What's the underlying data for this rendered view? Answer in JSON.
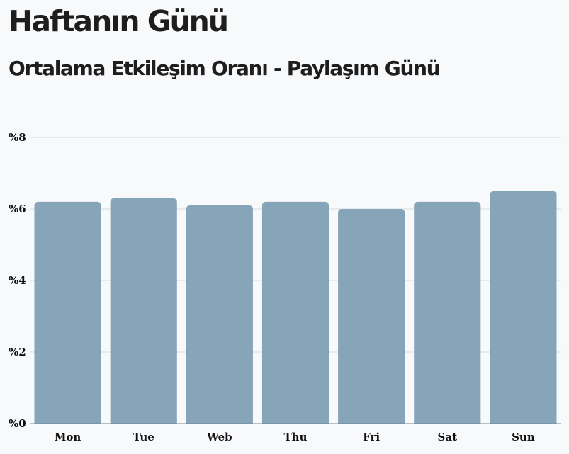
{
  "header": {
    "title": "Haftanın Günü",
    "subtitle": "Ortalama Etkileşim Oranı - Paylaşım Günü"
  },
  "chart_data": {
    "type": "bar",
    "title": "Ortalama Etkileşim Oranı - Paylaşım Günü",
    "xlabel": "",
    "ylabel": "",
    "categories": [
      "Mon",
      "Tue",
      "Web",
      "Thu",
      "Fri",
      "Sat",
      "Sun"
    ],
    "values": [
      6.2,
      6.3,
      6.1,
      6.2,
      6.0,
      6.2,
      6.5
    ],
    "ylim": [
      0,
      8
    ],
    "yticks": [
      0,
      2,
      4,
      6,
      8
    ],
    "ytick_labels": [
      "%0",
      "%2",
      "%4",
      "%6",
      "%8"
    ],
    "grid": true,
    "legend": "none",
    "colors": {
      "bar": "#86a5b8",
      "grid": "#d9dde2",
      "baseline": "#6f8798"
    }
  }
}
